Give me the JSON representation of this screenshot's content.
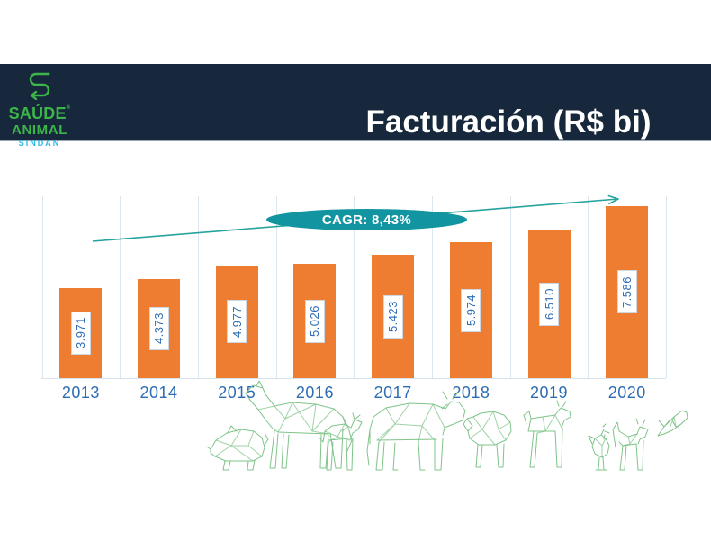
{
  "header": {
    "title": "Facturación (R$ bi)"
  },
  "logo": {
    "name": "SAÚDE",
    "registered": "®",
    "line2": "ANIMAL",
    "line3": "SINDAN",
    "icon": "snake-s-arrow-icon"
  },
  "chart_data": {
    "type": "bar",
    "title": "Facturación (R$ bi)",
    "categories": [
      "2013",
      "2014",
      "2015",
      "2016",
      "2017",
      "2018",
      "2019",
      "2020"
    ],
    "values": [
      3.971,
      4.373,
      4.977,
      5.026,
      5.423,
      5.974,
      6.51,
      7.586
    ],
    "value_labels": [
      "3.971",
      "4.373",
      "4.977",
      "5.026",
      "5.423",
      "5.974",
      "6.510",
      "7.586"
    ],
    "annotation": "CAGR: 8,43%",
    "xlabel": "",
    "ylabel": "",
    "ylim": [
      0,
      8
    ],
    "grid": "vertical column separators, light blue-gray",
    "legend": "none",
    "bar_color": "#ee7c31",
    "value_label_style": "white box, blue vertical text inside bar",
    "trendline": "teal rising arrow across columns ending above 2020 bar"
  },
  "decorations": {
    "style": "green low-poly wireframe animals along bottom",
    "animals": [
      "pig",
      "horse",
      "goat",
      "cow",
      "sheep",
      "dog",
      "rooster",
      "cat",
      "fish"
    ]
  },
  "colors": {
    "header_bg": "#17283c",
    "title_text": "#ffffff",
    "bar_orange": "#ee7c31",
    "text_blue": "#2e6db4",
    "badge_teal": "#1295a0",
    "trend_teal": "#26a39f",
    "gridline": "#dce6ef",
    "logo_green": "#3cb54a",
    "sindan_cyan": "#29b9e7",
    "animal_green": "#7fc38a"
  }
}
